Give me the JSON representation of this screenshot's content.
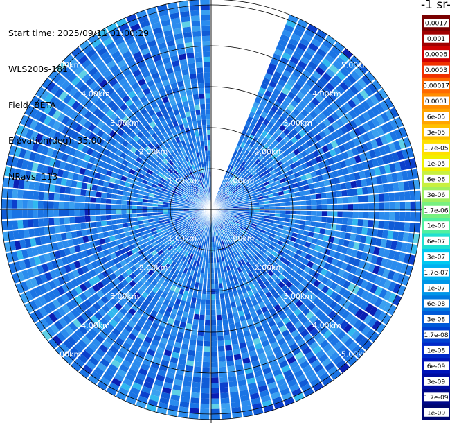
{
  "header": {
    "start_time": "Start time: 2025/09/11 01:00:29",
    "instrument": "WLS200s-181",
    "field": "Field: BETA",
    "elevation": "Elevation(deg): 35.00",
    "nrays": "NRays: 113"
  },
  "colorbar": {
    "title": "-1 sr-",
    "labels": [
      "0.0017",
      "0.001",
      "0.0006",
      "0.0003",
      "0.00017",
      "0.0001",
      "6e-05",
      "3e-05",
      "1.7e-05",
      "1e-05",
      "6e-06",
      "3e-06",
      "1.7e-06",
      "1e-06",
      "6e-07",
      "3e-07",
      "1.7e-07",
      "1e-07",
      "6e-08",
      "3e-08",
      "1.7e-08",
      "1e-08",
      "6e-09",
      "3e-09",
      "1.7e-09",
      "1e-09"
    ],
    "colors": [
      "#7a0000",
      "#a00000",
      "#d00000",
      "#f03000",
      "#ff6a00",
      "#ff8c00",
      "#ffa500",
      "#ffc000",
      "#ffe000",
      "#f0f000",
      "#c8f040",
      "#a0f060",
      "#78f080",
      "#50f0a0",
      "#20e0d0",
      "#00c8f0",
      "#00b0f0",
      "#0096e8",
      "#0078e0",
      "#005ad8",
      "#0040d0",
      "#0028c8",
      "#0014b8",
      "#000ca0",
      "#000888",
      "#000670"
    ]
  },
  "chart_data": {
    "type": "heatmap",
    "projection": "polar PPI",
    "field": "BETA",
    "elevation_deg": 35.0,
    "nrays": 113,
    "azimuth_gap_deg": [
      0,
      22
    ],
    "ring_labels": [
      "1.00km",
      "2.00km",
      "3.00km",
      "4.00km",
      "5.00km"
    ],
    "ring_km": [
      1,
      2,
      3,
      4,
      5
    ],
    "max_range_km": 5.1,
    "value_range": [
      1e-09,
      0.0017
    ],
    "dominant_values": [
      3e-08,
      6e-08,
      1e-07,
      1.7e-08
    ],
    "grid": true
  }
}
